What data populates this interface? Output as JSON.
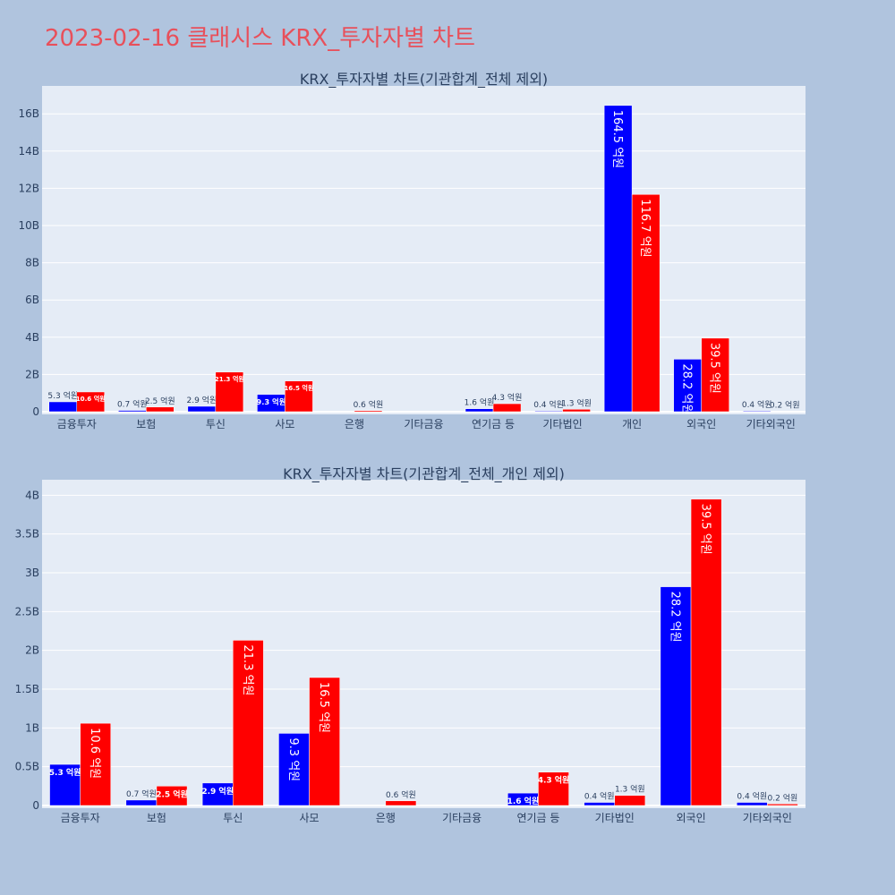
{
  "page_title": "2023-02-16 클래시스 KRX_투자자별 차트",
  "colors": {
    "series_a": "#0000ff",
    "series_b": "#ff0000",
    "plot_bg": "#e5ecf6",
    "page_bg": "#b0c4de",
    "title": "#e8505b"
  },
  "chart_data": [
    {
      "type": "bar",
      "title": "KRX_투자자별 차트(기관합계_전체 제외)",
      "categories": [
        "금융투자",
        "보험",
        "투신",
        "사모",
        "은행",
        "기타금융",
        "연기금 등",
        "기타법인",
        "개인",
        "외국인",
        "기타외국인"
      ],
      "ylim": [
        0,
        17500000000
      ],
      "yticks": [
        0,
        2000000000,
        4000000000,
        6000000000,
        8000000000,
        10000000000,
        12000000000,
        14000000000,
        16000000000
      ],
      "ytick_labels": [
        "0",
        "2B",
        "4B",
        "6B",
        "8B",
        "10B",
        "12B",
        "14B",
        "16B"
      ],
      "grid": true,
      "series": [
        {
          "color": "#0000ff",
          "values": [
            530000000,
            70000000,
            290000000,
            930000000,
            0,
            0,
            160000000,
            40000000,
            16450000000,
            2820000000,
            40000000
          ],
          "labels": [
            "5.3 억원",
            "0.7 억원",
            "2.9 억원",
            "9.3 억원",
            "",
            "",
            "1.6 억원",
            "0.4 억원",
            "164.5 억원",
            "28.2 억원",
            "0.4 억원"
          ]
        },
        {
          "color": "#ff0000",
          "values": [
            1060000000,
            250000000,
            2130000000,
            1650000000,
            60000000,
            0,
            430000000,
            130000000,
            11670000000,
            3950000000,
            20000000
          ],
          "labels": [
            "10.6 억원",
            "2.5 억원",
            "21.3 억원",
            "16.5 억원",
            "0.6 억원",
            "",
            "4.3 억원",
            "1.3 억원",
            "116.7 억원",
            "39.5 억원",
            "0.2 억원"
          ]
        }
      ]
    },
    {
      "type": "bar",
      "title": "KRX_투자자별 차트(기관합계_전체_개인 제외)",
      "categories": [
        "금융투자",
        "보험",
        "투신",
        "사모",
        "은행",
        "기타금융",
        "연기금 등",
        "기타법인",
        "외국인",
        "기타외국인"
      ],
      "ylim": [
        0,
        4200000000
      ],
      "yticks": [
        0,
        500000000,
        1000000000,
        1500000000,
        2000000000,
        2500000000,
        3000000000,
        3500000000,
        4000000000
      ],
      "ytick_labels": [
        "0",
        "0.5B",
        "1B",
        "1.5B",
        "2B",
        "2.5B",
        "3B",
        "3.5B",
        "4B"
      ],
      "grid": true,
      "series": [
        {
          "color": "#0000ff",
          "values": [
            530000000,
            70000000,
            290000000,
            930000000,
            0,
            0,
            160000000,
            40000000,
            2820000000,
            40000000
          ],
          "labels": [
            "5.3 억원",
            "0.7 억원",
            "2.9 억원",
            "9.3 억원",
            "",
            "",
            "1.6 억원",
            "0.4 억원",
            "28.2 억원",
            "0.4 억원"
          ]
        },
        {
          "color": "#ff0000",
          "values": [
            1060000000,
            250000000,
            2130000000,
            1650000000,
            60000000,
            0,
            430000000,
            130000000,
            3950000000,
            20000000
          ],
          "labels": [
            "10.6 억원",
            "2.5 억원",
            "21.3 억원",
            "16.5 억원",
            "0.6 억원",
            "",
            "4.3 억원",
            "1.3 억원",
            "39.5 억원",
            "0.2 억원"
          ]
        }
      ]
    }
  ]
}
